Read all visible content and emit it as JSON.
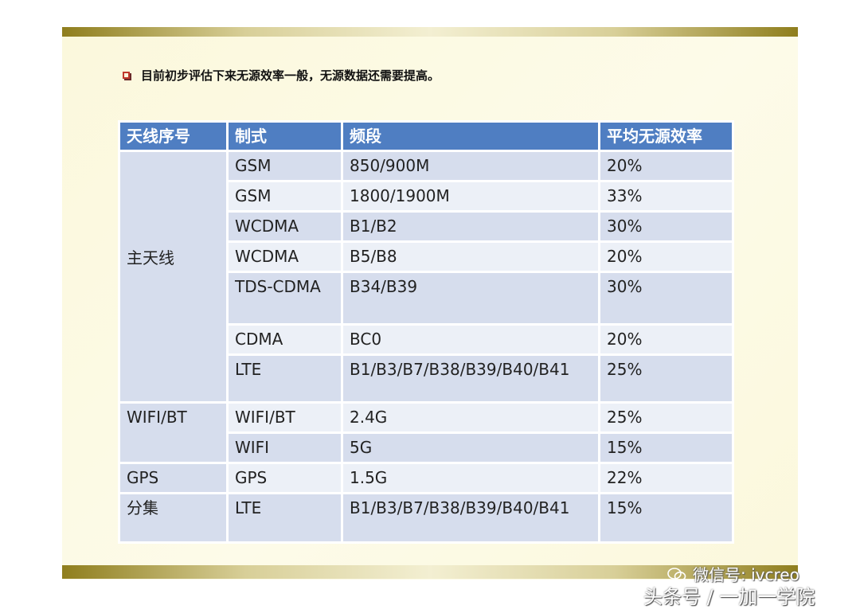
{
  "bullet": {
    "text": "目前初步评估下来无源效率一般，无源数据还需要提高。"
  },
  "table": {
    "headers": [
      "天线序号",
      "制式",
      "频段",
      "平均无源效率"
    ],
    "groups": {
      "main": "主天线",
      "wifi": "WIFI/BT",
      "gps": "GPS",
      "div": "分集"
    },
    "rows": [
      {
        "std": "GSM",
        "band": "850/900M",
        "eff": "20%"
      },
      {
        "std": "GSM",
        "band": "1800/1900M",
        "eff": "33%"
      },
      {
        "std": "WCDMA",
        "band": "B1/B2",
        "eff": "30%"
      },
      {
        "std": "WCDMA",
        "band": "B5/B8",
        "eff": "20%"
      },
      {
        "std": "TDS-CDMA",
        "band": "B34/B39",
        "eff": "30%"
      },
      {
        "std": "CDMA",
        "band": "BC0",
        "eff": "20%"
      },
      {
        "std": "LTE",
        "band": "B1/B3/B7/B38/B39/B40/B41",
        "eff": "25%"
      },
      {
        "std": "WIFI/BT",
        "band": "2.4G",
        "eff": "25%"
      },
      {
        "std": "WIFI",
        "band": "5G",
        "eff": "15%"
      },
      {
        "std": "GPS",
        "band": "1.5G",
        "eff": "22%"
      },
      {
        "std": "LTE",
        "band": "B1/B3/B7/B38/B39/B40/B41",
        "eff": "15%"
      }
    ]
  },
  "watermark": {
    "wechat": "微信号: ivcreo",
    "toutiao": "头条号 / 一加一学院"
  }
}
